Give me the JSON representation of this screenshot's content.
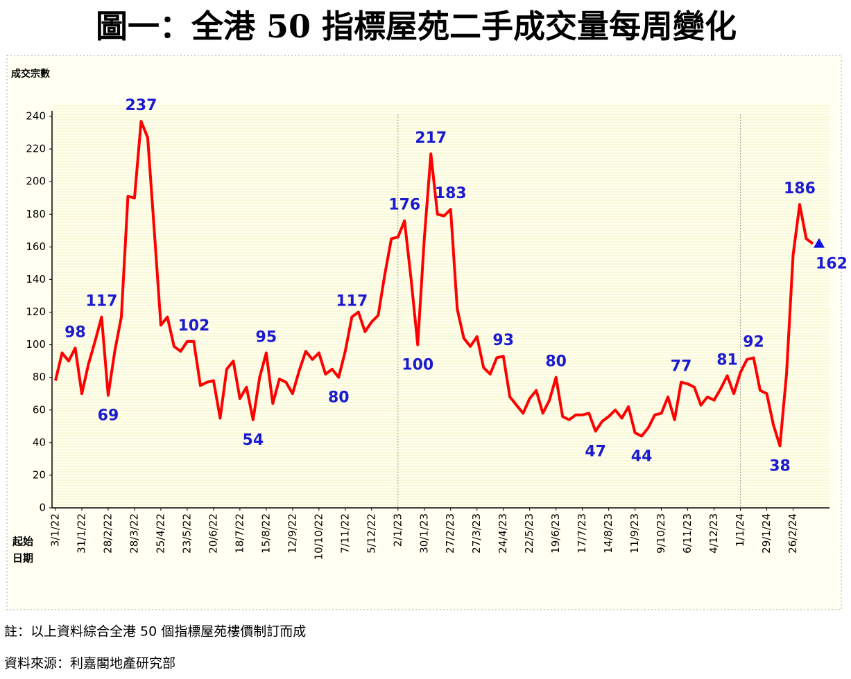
{
  "chart_data": {
    "type": "line",
    "title": "圖一：全港 50 指標屋苑二手成交量每周變化",
    "y_label": "成交宗數",
    "x_label": [
      "起始",
      "日期"
    ],
    "note": "註：以上資料綜合全港 50 個指標屋苑樓價制訂而成",
    "source": "資料來源：利嘉閣地產研究部",
    "categories": [
      "3/1/22",
      null,
      null,
      null,
      "31/1/22",
      null,
      null,
      null,
      "28/2/22",
      null,
      null,
      null,
      "28/3/22",
      null,
      null,
      null,
      "25/4/22",
      null,
      null,
      null,
      "23/5/22",
      null,
      null,
      null,
      "20/6/22",
      null,
      null,
      null,
      "18/7/22",
      null,
      null,
      null,
      "15/8/22",
      null,
      null,
      null,
      "12/9/22",
      null,
      null,
      null,
      "10/10/22",
      null,
      null,
      null,
      "7/11/22",
      null,
      null,
      null,
      "5/12/22",
      null,
      null,
      null,
      "2/1/23",
      null,
      null,
      null,
      "30/1/23",
      null,
      null,
      null,
      "27/2/23",
      null,
      null,
      null,
      "27/3/23",
      null,
      null,
      null,
      "24/4/23",
      null,
      null,
      null,
      "22/5/23",
      null,
      null,
      null,
      "19/6/23",
      null,
      null,
      null,
      "17/7/23",
      null,
      null,
      null,
      "14/8/23",
      null,
      null,
      null,
      "11/9/23",
      null,
      null,
      null,
      "9/10/23",
      null,
      null,
      null,
      "6/11/23",
      null,
      null,
      null,
      "4/12/23",
      null,
      null,
      null,
      "1/1/24",
      null,
      null,
      null,
      "29/1/24",
      null,
      null,
      null,
      "26/2/24",
      null,
      null,
      null
    ],
    "series": [
      {
        "color": "#ff0000",
        "label_color": "#1a1ad0",
        "values": [
          78,
          95,
          90,
          98,
          70,
          88,
          102,
          117,
          69,
          96,
          117,
          191,
          190,
          237,
          227,
          170,
          112,
          117,
          99,
          96,
          102,
          102,
          75,
          77,
          78,
          55,
          85,
          90,
          67,
          74,
          54,
          80,
          95,
          64,
          79,
          77,
          70,
          84,
          96,
          91,
          95,
          82,
          85,
          80,
          96,
          117,
          120,
          108,
          114,
          118,
          143,
          165,
          166,
          176,
          140,
          100,
          165,
          217,
          180,
          179,
          183,
          122,
          104,
          99,
          105,
          86,
          82,
          92,
          93,
          68,
          63,
          58,
          67,
          72,
          58,
          66,
          80,
          56,
          54,
          57,
          57,
          58,
          47,
          53,
          56,
          60,
          55,
          62,
          46,
          44,
          49,
          57,
          58,
          68,
          54,
          77,
          76,
          74,
          63,
          68,
          66,
          73,
          81,
          70,
          83,
          91,
          92,
          72,
          70,
          51,
          38,
          82,
          155,
          186,
          165,
          162
        ]
      }
    ],
    "data_labels": [
      3,
      7,
      8,
      13,
      21,
      30,
      32,
      43,
      45,
      53,
      55,
      57,
      60,
      68,
      76,
      82,
      89,
      95,
      102,
      106,
      110,
      113,
      115
    ],
    "vlines": [
      52,
      104
    ],
    "ylim": [
      0,
      240
    ],
    "yticks": [
      0,
      20,
      40,
      60,
      80,
      100,
      120,
      140,
      160,
      180,
      200,
      220,
      240
    ],
    "end_marker": "triangle"
  }
}
